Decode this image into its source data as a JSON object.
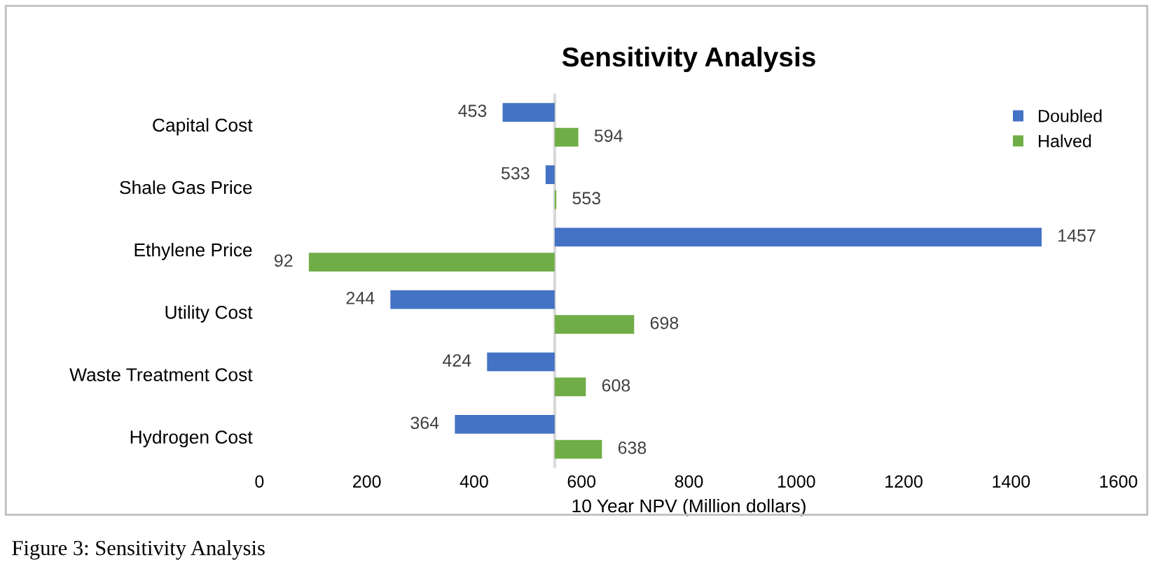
{
  "chart_data": {
    "type": "bar",
    "orientation": "horizontal",
    "title": "Sensitivity Analysis",
    "xlabel": "10 Year NPV (Million dollars)",
    "categories": [
      "Capital Cost",
      "Shale Gas Price",
      "Ethylene Price",
      "Utility Cost",
      "Waste Treatment Cost",
      "Hydrogen Cost"
    ],
    "series": [
      {
        "name": "Doubled",
        "color": "#4472c4",
        "base": [
          550,
          550,
          550,
          550,
          550,
          550
        ],
        "values": [
          -97,
          -17,
          907,
          -306,
          -126,
          -186
        ],
        "value_labels": [
          "453",
          "533",
          "1457",
          "244",
          "424",
          "364"
        ]
      },
      {
        "name": "Halved",
        "color": "#70ad47",
        "base": [
          550,
          550,
          550,
          550,
          550,
          550
        ],
        "values": [
          44,
          3,
          -458,
          148,
          58,
          88
        ],
        "value_labels": [
          "594",
          "553",
          "92",
          "698",
          "608",
          "638"
        ]
      }
    ],
    "xlim": [
      0,
      1600
    ],
    "xticks": [
      0,
      200,
      400,
      600,
      800,
      1000,
      1200,
      1400,
      1600
    ],
    "ref_lines": [
      {
        "axis": "x",
        "value": 550,
        "color": "#d9d9d9"
      }
    ],
    "legend": "top right",
    "grid": false,
    "annotations": [
      "Figure 3: Sensitivity Analysis"
    ]
  }
}
